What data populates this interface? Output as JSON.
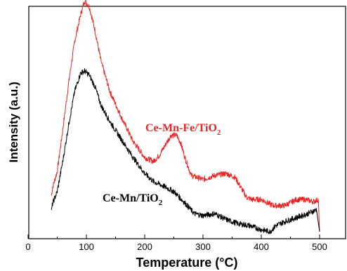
{
  "chart_data": {
    "type": "line",
    "xlabel": "Temperature (°C)",
    "ylabel": "Intensity (a.u.)",
    "xlim": [
      0,
      550
    ],
    "x_ticks": [
      0,
      100,
      200,
      300,
      400,
      500
    ],
    "x_tick_labels": [
      "0",
      "100",
      "200",
      "300",
      "400",
      "500"
    ],
    "y_ticks_shown": false,
    "grid": false,
    "colors": {
      "red": "#ee2222",
      "black": "#000000"
    },
    "series": [
      {
        "name": "Ce-Mn-Fe/TiO2",
        "label_main": "Ce-Mn-Fe/TiO",
        "label_sub": "2",
        "color": "#ee2222",
        "x": [
          40,
          42,
          50,
          60,
          70,
          80,
          90,
          97,
          105,
          115,
          125,
          140,
          160,
          180,
          200,
          215,
          225,
          235,
          245,
          255,
          262,
          270,
          280,
          300,
          320,
          340,
          355,
          365,
          375,
          385,
          400,
          420,
          440,
          460,
          475,
          490,
          498,
          500
        ],
        "y": [
          0.18,
          0.22,
          0.3,
          0.52,
          0.75,
          0.95,
          1.08,
          1.15,
          1.12,
          1.0,
          0.85,
          0.7,
          0.57,
          0.45,
          0.37,
          0.35,
          0.38,
          0.43,
          0.48,
          0.48,
          0.44,
          0.36,
          0.28,
          0.26,
          0.28,
          0.29,
          0.27,
          0.22,
          0.17,
          0.16,
          0.16,
          0.13,
          0.13,
          0.16,
          0.16,
          0.15,
          0.16,
          0.0
        ]
      },
      {
        "name": "Ce-Mn/TiO2",
        "label_main": "Ce-Mn/TiO",
        "label_sub": "2",
        "color": "#000000",
        "x": [
          40,
          42,
          50,
          60,
          70,
          80,
          90,
          97,
          105,
          115,
          125,
          140,
          160,
          180,
          200,
          215,
          230,
          250,
          270,
          285,
          300,
          320,
          340,
          360,
          380,
          400,
          415,
          425,
          440,
          460,
          480,
          495,
          500
        ],
        "y": [
          0.1,
          0.14,
          0.2,
          0.36,
          0.54,
          0.7,
          0.79,
          0.8,
          0.78,
          0.72,
          0.63,
          0.55,
          0.46,
          0.37,
          0.29,
          0.25,
          0.23,
          0.2,
          0.14,
          0.09,
          0.08,
          0.09,
          0.06,
          0.04,
          0.03,
          0.01,
          0.0,
          0.03,
          0.05,
          0.07,
          0.09,
          0.11,
          0.0
        ]
      }
    ]
  }
}
